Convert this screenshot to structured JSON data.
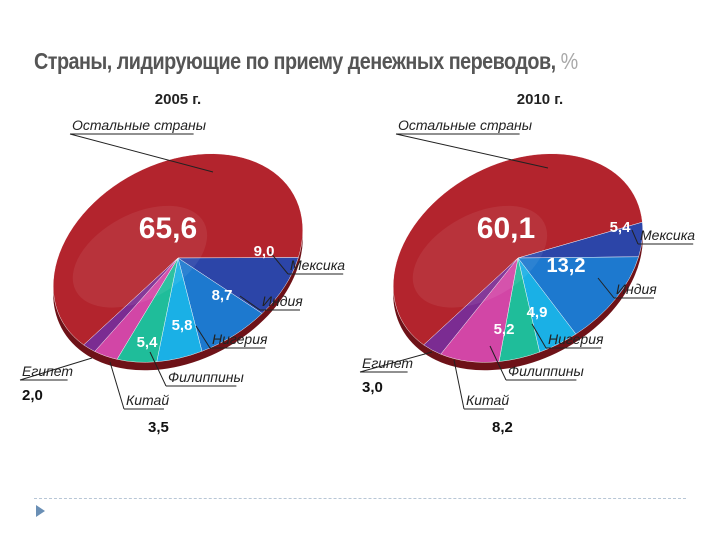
{
  "title": "Страны, лидирующие по приему денежных переводов,",
  "unit": "%",
  "chart_data": [
    {
      "type": "pie",
      "title": "2005 г.",
      "categories": [
        "Остальные страны",
        "Мексика",
        "Индия",
        "Нигерия",
        "Филиппины",
        "Китай",
        "Египет"
      ],
      "values": [
        65.6,
        9.0,
        8.7,
        5.8,
        5.4,
        3.5,
        2.0
      ],
      "value_labels": [
        "65,6",
        "9,0",
        "8,7",
        "5,8",
        "5,4",
        "3,5",
        "2,0"
      ],
      "colors": [
        "#b3242d",
        "#2c45a8",
        "#1d79cf",
        "#1ab0e6",
        "#1fbd9a",
        "#d246a6",
        "#7b2c92"
      ]
    },
    {
      "type": "pie",
      "title": "2010 г.",
      "categories": [
        "Остальные страны",
        "Мексика",
        "Индия",
        "Нигерия",
        "Филиппины",
        "Китай",
        "Египет"
      ],
      "values": [
        60.1,
        5.4,
        13.2,
        4.9,
        5.2,
        8.2,
        3.0
      ],
      "value_labels": [
        "60,1",
        "5,4",
        "13,2",
        "4,9",
        "5,2",
        "8,2",
        "3,0"
      ],
      "colors": [
        "#b3242d",
        "#2c45a8",
        "#1d79cf",
        "#1ab0e6",
        "#1fbd9a",
        "#d246a6",
        "#7b2c92"
      ]
    }
  ]
}
